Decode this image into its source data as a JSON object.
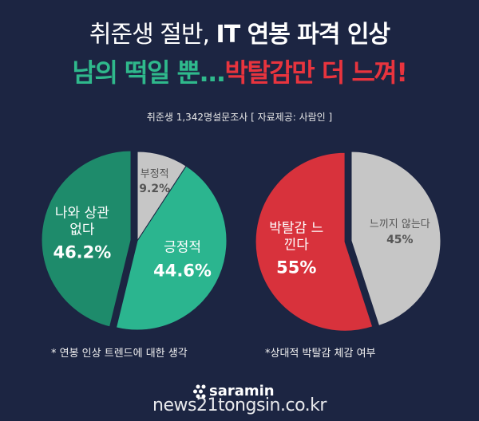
{
  "header": {
    "title": [
      "취준생 절반,",
      "IT 연봉 파격 인상"
    ],
    "headline": [
      "남의 떡일 뿐...",
      "박탈감만 더 느껴!"
    ],
    "source": "취준생 1,342명설문조사 [ 자료제공: 사람인 ]"
  },
  "chart_data": [
    {
      "type": "pie",
      "categories": [
        "부정적",
        "긍정적",
        "나와 상관없다"
      ],
      "values": [
        9.2,
        44.6,
        46.2
      ],
      "value_labels": [
        "9.2%",
        "44.6%",
        "46.2%"
      ],
      "colors": [
        "#c6c6c6",
        "#2bb58f",
        "#1e8b6b"
      ],
      "note": "* 연봉 인상 트렌드에 대한 생각"
    },
    {
      "type": "pie",
      "categories": [
        "느끼지 않는다",
        "박탈감 느낀다"
      ],
      "values": [
        45,
        55
      ],
      "value_labels": [
        "45%",
        "55%"
      ],
      "colors": [
        "#c6c6c6",
        "#d8323c"
      ],
      "note": "*상대적 박탈감 체감 여부"
    }
  ],
  "footer": {
    "brand": "saramin",
    "watermark": "news21tongsin.co.kr"
  }
}
